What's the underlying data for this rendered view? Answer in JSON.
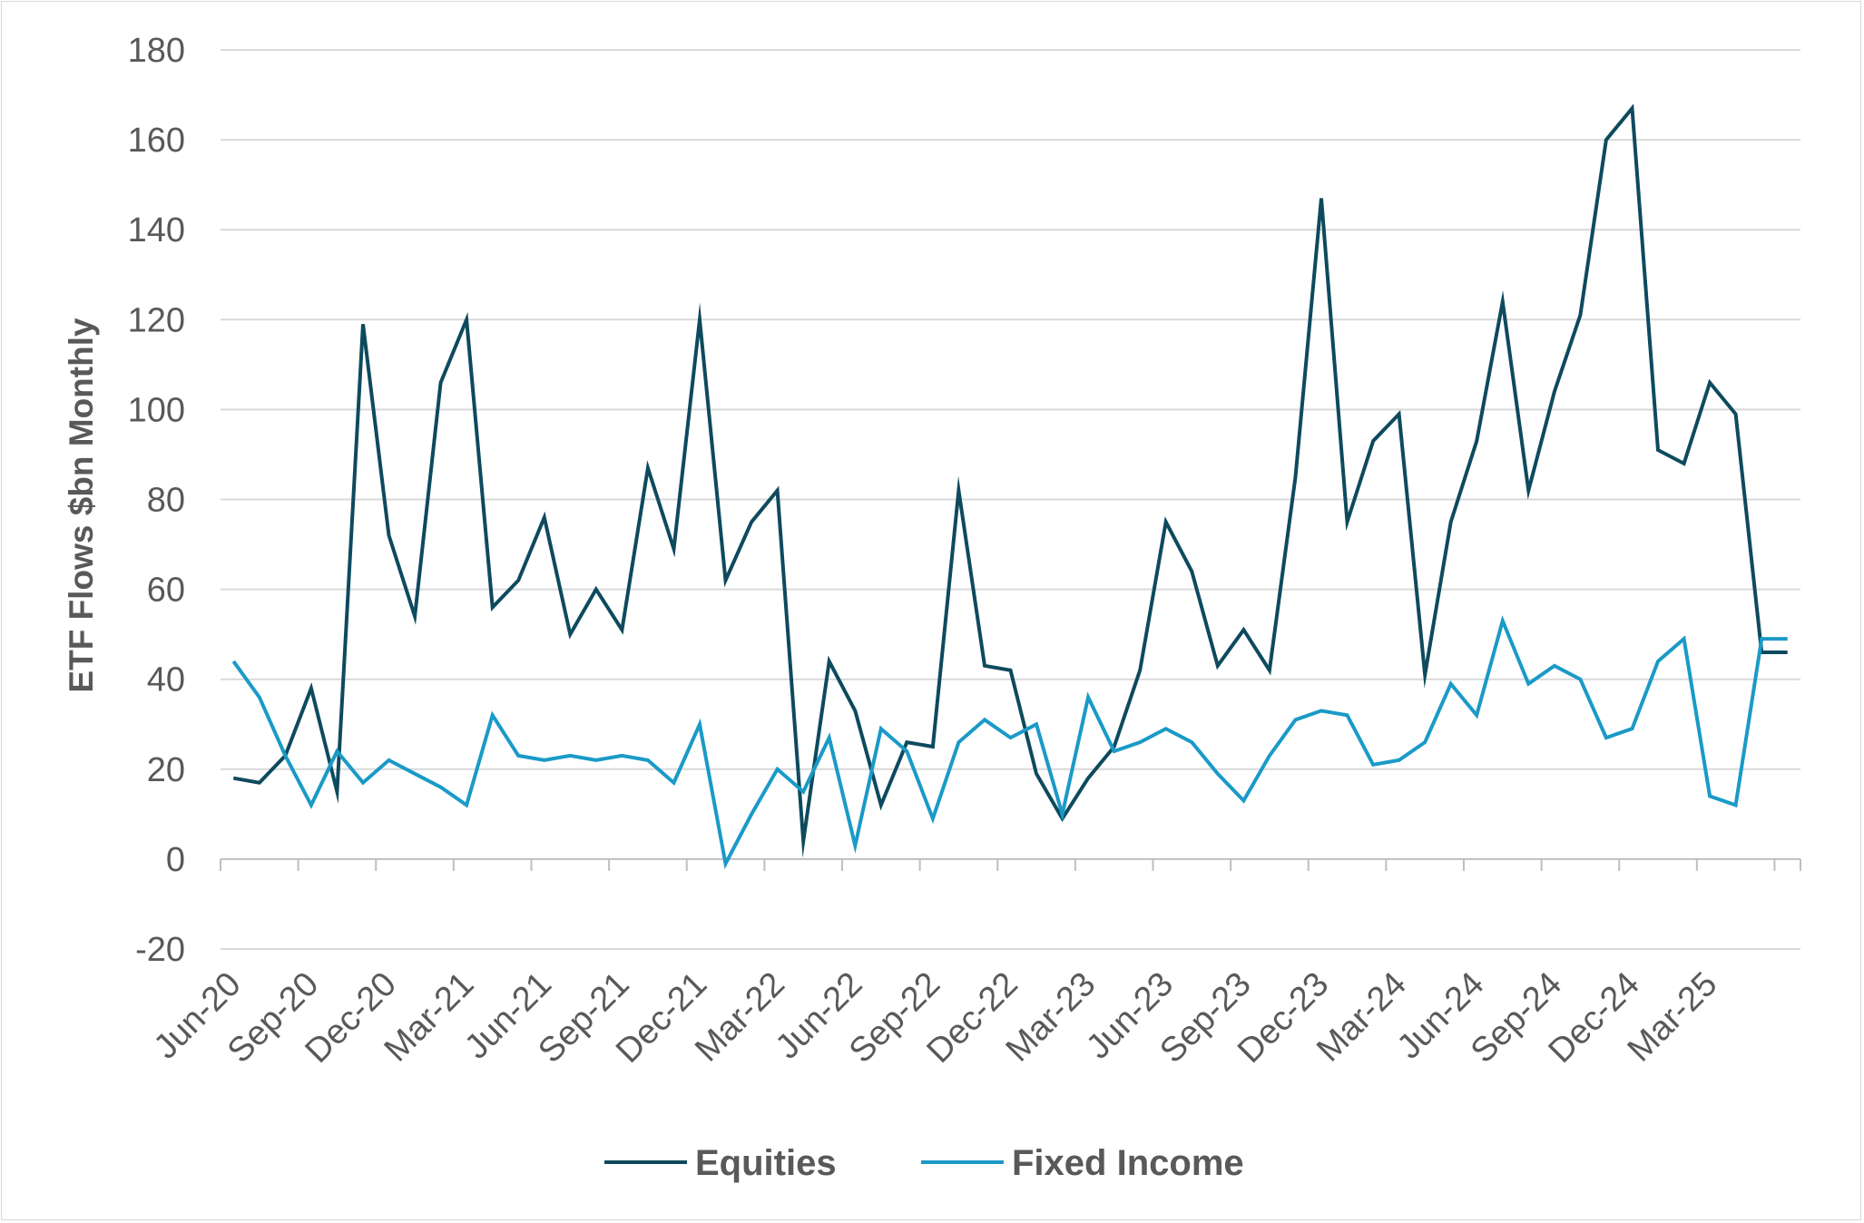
{
  "chart_data": {
    "type": "line",
    "title": "",
    "xlabel": "",
    "ylabel": "ETF Flows $bn Monthly",
    "ylim": [
      -20,
      180
    ],
    "yticks": [
      -20,
      0,
      20,
      40,
      60,
      80,
      100,
      120,
      140,
      160,
      180
    ],
    "grid": true,
    "legend": "bottom-center",
    "x_tick_labels": [
      "Jun-20",
      "Sep-20",
      "Dec-20",
      "Mar-21",
      "Jun-21",
      "Sep-21",
      "Dec-21",
      "Mar-22",
      "Jun-22",
      "Sep-22",
      "Dec-22",
      "Mar-23",
      "Jun-23",
      "Sep-23",
      "Dec-23",
      "Mar-24",
      "Jun-24",
      "Sep-24",
      "Dec-24",
      "Mar-25"
    ],
    "categories": [
      "Jun-20",
      "Jul-20",
      "Aug-20",
      "Sep-20",
      "Oct-20",
      "Nov-20",
      "Dec-20",
      "Jan-21",
      "Feb-21",
      "Mar-21",
      "Apr-21",
      "May-21",
      "Jun-21",
      "Jul-21",
      "Aug-21",
      "Sep-21",
      "Oct-21",
      "Nov-21",
      "Dec-21",
      "Jan-22",
      "Feb-22",
      "Mar-22",
      "Apr-22",
      "May-22",
      "Jun-22",
      "Jul-22",
      "Aug-22",
      "Sep-22",
      "Oct-22",
      "Nov-22",
      "Dec-22",
      "Jan-23",
      "Feb-23",
      "Mar-23",
      "Apr-23",
      "May-23",
      "Jun-23",
      "Jul-23",
      "Aug-23",
      "Sep-23",
      "Oct-23",
      "Nov-23",
      "Dec-23",
      "Jan-24",
      "Feb-24",
      "Mar-24",
      "Apr-24",
      "May-24",
      "Jun-24",
      "Jul-24",
      "Aug-24",
      "Sep-24",
      "Oct-24",
      "Nov-24",
      "Dec-24",
      "Jan-25",
      "Feb-25",
      "Mar-25",
      "Apr-25",
      "May-25",
      "Jun-25"
    ],
    "series": [
      {
        "name": "Equities",
        "color": "#0e4a5e",
        "values": [
          18,
          17,
          23,
          38,
          15,
          119,
          72,
          54,
          106,
          120,
          56,
          62,
          76,
          50,
          60,
          51,
          87,
          69,
          120,
          62,
          75,
          82,
          4,
          44,
          33,
          12,
          26,
          25,
          82,
          43,
          42,
          19,
          9,
          18,
          25,
          42,
          75,
          64,
          43,
          51,
          42,
          85,
          147,
          75,
          93,
          99,
          41,
          75,
          93,
          124,
          82,
          104,
          121,
          160,
          167,
          91,
          88,
          106,
          99,
          46,
          46
        ]
      },
      {
        "name": "Fixed Income",
        "color": "#1a9ac7",
        "values": [
          44,
          36,
          23,
          12,
          24,
          17,
          22,
          19,
          16,
          12,
          32,
          23,
          22,
          23,
          22,
          23,
          22,
          17,
          30,
          -1,
          10,
          20,
          15,
          27,
          3,
          29,
          24,
          9,
          26,
          31,
          27,
          30,
          10,
          36,
          24,
          26,
          29,
          26,
          19,
          13,
          23,
          31,
          33,
          32,
          21,
          22,
          26,
          39,
          32,
          53,
          39,
          43,
          40,
          27,
          29,
          44,
          49,
          14,
          12,
          49,
          49
        ]
      }
    ]
  }
}
